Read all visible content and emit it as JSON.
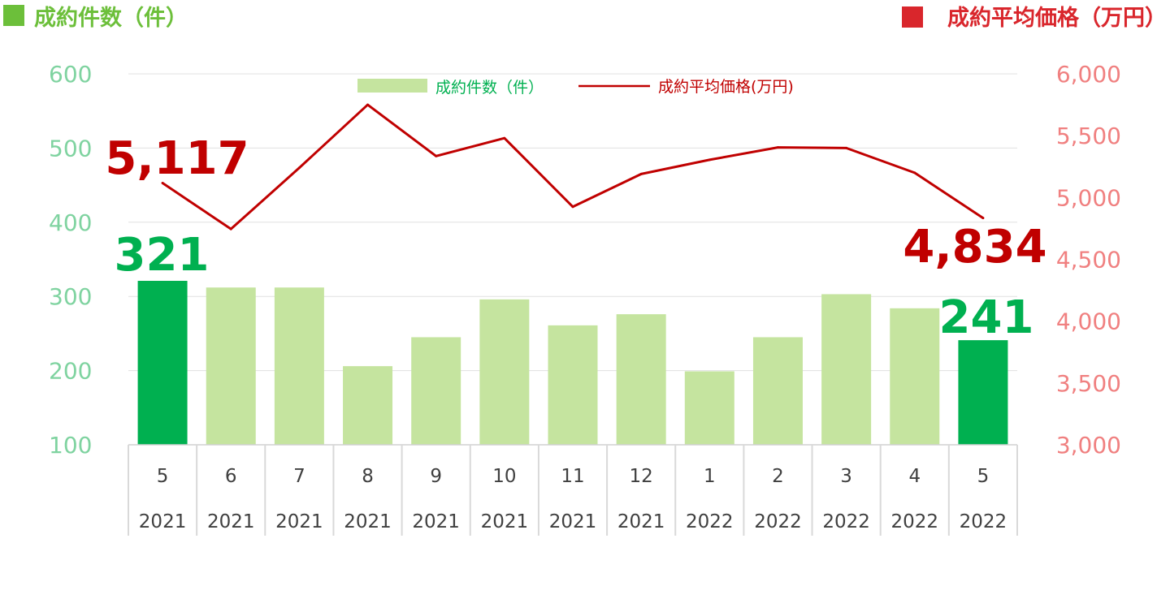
{
  "header": {
    "left_title": "成約件数（件）",
    "right_title": "成約平均価格（万円）",
    "left_color": "#6cbf3a",
    "right_color": "#d9262c"
  },
  "legend": {
    "bar_label": "成約件数（件）",
    "line_label": "成約平均価格(万円)",
    "bar_color": "#c5e49f",
    "line_color": "#c00000"
  },
  "chart_data": {
    "type": "bar",
    "categories": [
      {
        "month": "5",
        "year": "2021"
      },
      {
        "month": "6",
        "year": "2021"
      },
      {
        "month": "7",
        "year": "2021"
      },
      {
        "month": "8",
        "year": "2021"
      },
      {
        "month": "9",
        "year": "2021"
      },
      {
        "month": "10",
        "year": "2021"
      },
      {
        "month": "11",
        "year": "2021"
      },
      {
        "month": "12",
        "year": "2021"
      },
      {
        "month": "1",
        "year": "2022"
      },
      {
        "month": "2",
        "year": "2022"
      },
      {
        "month": "3",
        "year": "2022"
      },
      {
        "month": "4",
        "year": "2022"
      },
      {
        "month": "5",
        "year": "2022"
      }
    ],
    "series": [
      {
        "name": "成約件数（件）",
        "type": "bar",
        "axis": "left",
        "values": [
          321,
          312,
          312,
          206,
          245,
          296,
          261,
          276,
          199,
          245,
          303,
          284,
          241
        ],
        "highlight_indices": [
          0,
          12
        ]
      },
      {
        "name": "成約平均価格(万円)",
        "type": "line",
        "axis": "right",
        "values": [
          5117,
          4745,
          5240,
          5750,
          5335,
          5480,
          4925,
          5190,
          5305,
          5405,
          5400,
          5200,
          4834
        ]
      }
    ],
    "left_axis": {
      "ylim": [
        100,
        600
      ],
      "ticks": [
        "100",
        "200",
        "300",
        "400",
        "500",
        "600"
      ]
    },
    "right_axis": {
      "ylim": [
        3000,
        6000
      ],
      "ticks": [
        "3,000",
        "3,500",
        "4,000",
        "4,500",
        "5,000",
        "5,500",
        "6,000"
      ]
    },
    "annotations": {
      "bar_first": "321",
      "bar_last": "241",
      "line_first": "5,117",
      "line_last": "4,834"
    },
    "colors": {
      "bar": "#c5e49f",
      "bar_highlight": "#00b050",
      "line": "#c00000",
      "left_tick": "#7fd3a0",
      "right_tick": "#f08080",
      "grid": "#e0e0e0"
    },
    "legend_position": "top-center",
    "grid": true
  }
}
